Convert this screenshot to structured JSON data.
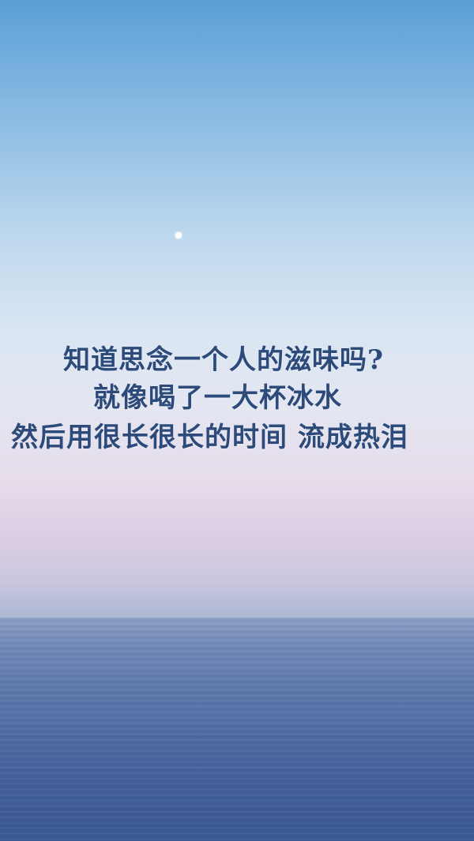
{
  "quote": {
    "line_1": "知道思念一个人的滋味吗?",
    "line_2": "就像喝了一大杯冰水",
    "line_3": "然后用很长很长的时间 流成热泪"
  },
  "colors": {
    "text": "#2c4a7a",
    "sky_top": "#5a9fd6",
    "sky_horizon": "#e6dcea",
    "sea": "#45629b"
  }
}
